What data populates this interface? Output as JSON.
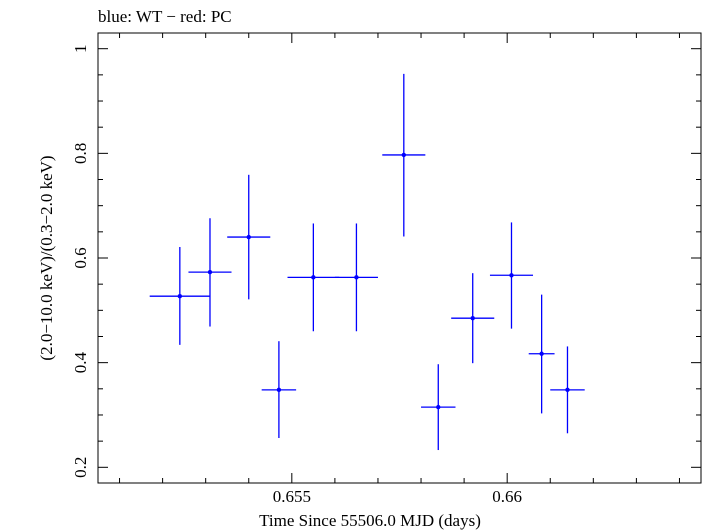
{
  "chart_data": {
    "type": "scatter",
    "title": "blue: WT − red: PC",
    "xlabel": "Time Since 55506.0 MJD (days)",
    "ylabel": "(2.0−10.0 keV)/(0.3−2.0 keV)",
    "xlim": [
      0.6505,
      0.6645
    ],
    "ylim": [
      0.17,
      1.03
    ],
    "x_ticks": [
      {
        "value": 0.655,
        "label": "0.655"
      },
      {
        "value": 0.66,
        "label": "0.66"
      }
    ],
    "y_ticks": [
      {
        "value": 0.2,
        "label": "0.2"
      },
      {
        "value": 0.4,
        "label": "0.4"
      },
      {
        "value": 0.6,
        "label": "0.6"
      },
      {
        "value": 0.8,
        "label": "0.8"
      },
      {
        "value": 1.0,
        "label": "1"
      }
    ],
    "series": [
      {
        "color": "#0000ff",
        "points": [
          {
            "x": 0.6524,
            "xerr": 0.0007,
            "y": 0.527,
            "ylo": 0.434,
            "yhi": 0.621
          },
          {
            "x": 0.6531,
            "xerr": 0.0005,
            "y": 0.573,
            "ylo": 0.469,
            "yhi": 0.676
          },
          {
            "x": 0.654,
            "xerr": 0.0005,
            "y": 0.64,
            "ylo": 0.521,
            "yhi": 0.759
          },
          {
            "x": 0.6547,
            "xerr": 0.0004,
            "y": 0.348,
            "ylo": 0.256,
            "yhi": 0.441
          },
          {
            "x": 0.6555,
            "xerr": 0.0006,
            "y": 0.563,
            "ylo": 0.46,
            "yhi": 0.666
          },
          {
            "x": 0.6565,
            "xerr": 0.0005,
            "y": 0.563,
            "ylo": 0.46,
            "yhi": 0.666
          },
          {
            "x": 0.6576,
            "xerr": 0.0005,
            "y": 0.797,
            "ylo": 0.641,
            "yhi": 0.952
          },
          {
            "x": 0.6584,
            "xerr": 0.0004,
            "y": 0.315,
            "ylo": 0.233,
            "yhi": 0.397
          },
          {
            "x": 0.6592,
            "xerr": 0.0005,
            "y": 0.485,
            "ylo": 0.399,
            "yhi": 0.571
          },
          {
            "x": 0.6601,
            "xerr": 0.0005,
            "y": 0.567,
            "ylo": 0.465,
            "yhi": 0.668
          },
          {
            "x": 0.6608,
            "xerr": 0.0003,
            "y": 0.417,
            "ylo": 0.303,
            "yhi": 0.53
          },
          {
            "x": 0.6614,
            "xerr": 0.0004,
            "y": 0.348,
            "ylo": 0.265,
            "yhi": 0.431
          }
        ]
      }
    ]
  }
}
